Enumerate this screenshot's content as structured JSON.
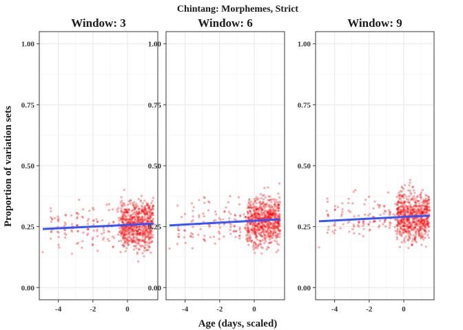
{
  "chart_data": {
    "type": "scatter",
    "title": "Chintang: Morphemes, Strict",
    "xlabel": "Age (days, scaled)",
    "ylabel": "Proportion of variation sets",
    "xlim": [
      -5.1,
      1.75
    ],
    "ylim": [
      -0.05,
      1.05
    ],
    "xticks": [
      -4,
      -2,
      0
    ],
    "yticks": [
      0.0,
      0.25,
      0.5,
      0.75,
      1.0
    ],
    "xtick_labels": [
      "-4",
      "-2",
      "0"
    ],
    "ytick_labels": [
      "0.00",
      "0.25",
      "0.50",
      "0.75",
      "1.00"
    ],
    "grid": true,
    "point_color": "#ff0000",
    "fit_color": "#3355ff",
    "panels": [
      {
        "title": "Window: 3",
        "fit": {
          "x": [
            -4.9,
            1.5
          ],
          "y": [
            0.24,
            0.262
          ]
        },
        "point_center": 0.245,
        "point_spread": 0.05,
        "points": [
          [
            -4.9,
            0.145
          ],
          [
            -4.4,
            0.27
          ],
          [
            -4.2,
            0.285
          ],
          [
            -3.8,
            0.245
          ],
          [
            -3.6,
            0.205
          ],
          [
            -3.2,
            0.23
          ],
          [
            -2.9,
            0.255
          ],
          [
            -2.8,
            0.36
          ],
          [
            -2.6,
            0.19
          ],
          [
            -2.2,
            0.315
          ],
          [
            -1.8,
            0.28
          ],
          [
            -1.5,
            0.22
          ],
          [
            -1.2,
            0.34
          ],
          [
            -0.9,
            0.25
          ],
          [
            -0.6,
            0.32
          ],
          [
            -0.3,
            0.29
          ]
        ]
      },
      {
        "title": "Window: 6",
        "fit": {
          "x": [
            -4.9,
            1.5
          ],
          "y": [
            0.255,
            0.28
          ]
        },
        "point_center": 0.265,
        "point_spread": 0.052,
        "points": [
          [
            -4.9,
            0.16
          ],
          [
            -4.4,
            0.255
          ],
          [
            -4.2,
            0.29
          ],
          [
            -3.7,
            0.21
          ],
          [
            -3.5,
            0.33
          ],
          [
            -3.1,
            0.24
          ],
          [
            -2.9,
            0.37
          ],
          [
            -2.6,
            0.26
          ],
          [
            -2.2,
            0.3
          ],
          [
            -1.8,
            0.28
          ],
          [
            -1.5,
            0.35
          ],
          [
            -1.2,
            0.23
          ],
          [
            -0.9,
            0.37
          ],
          [
            -0.6,
            0.3
          ],
          [
            -0.3,
            0.33
          ]
        ]
      },
      {
        "title": "Window: 9",
        "fit": {
          "x": [
            -4.9,
            1.5
          ],
          "y": [
            0.272,
            0.295
          ]
        },
        "point_center": 0.283,
        "point_spread": 0.052,
        "points": [
          [
            -4.9,
            0.165
          ],
          [
            -4.4,
            0.3
          ],
          [
            -4.1,
            0.23
          ],
          [
            -3.8,
            0.33
          ],
          [
            -3.5,
            0.26
          ],
          [
            -3.1,
            0.31
          ],
          [
            -2.8,
            0.4
          ],
          [
            -2.6,
            0.25
          ],
          [
            -2.2,
            0.36
          ],
          [
            -1.8,
            0.29
          ],
          [
            -1.5,
            0.34
          ],
          [
            -1.2,
            0.26
          ],
          [
            -0.9,
            0.39
          ],
          [
            -0.6,
            0.3
          ],
          [
            -0.3,
            0.35
          ]
        ]
      }
    ]
  }
}
